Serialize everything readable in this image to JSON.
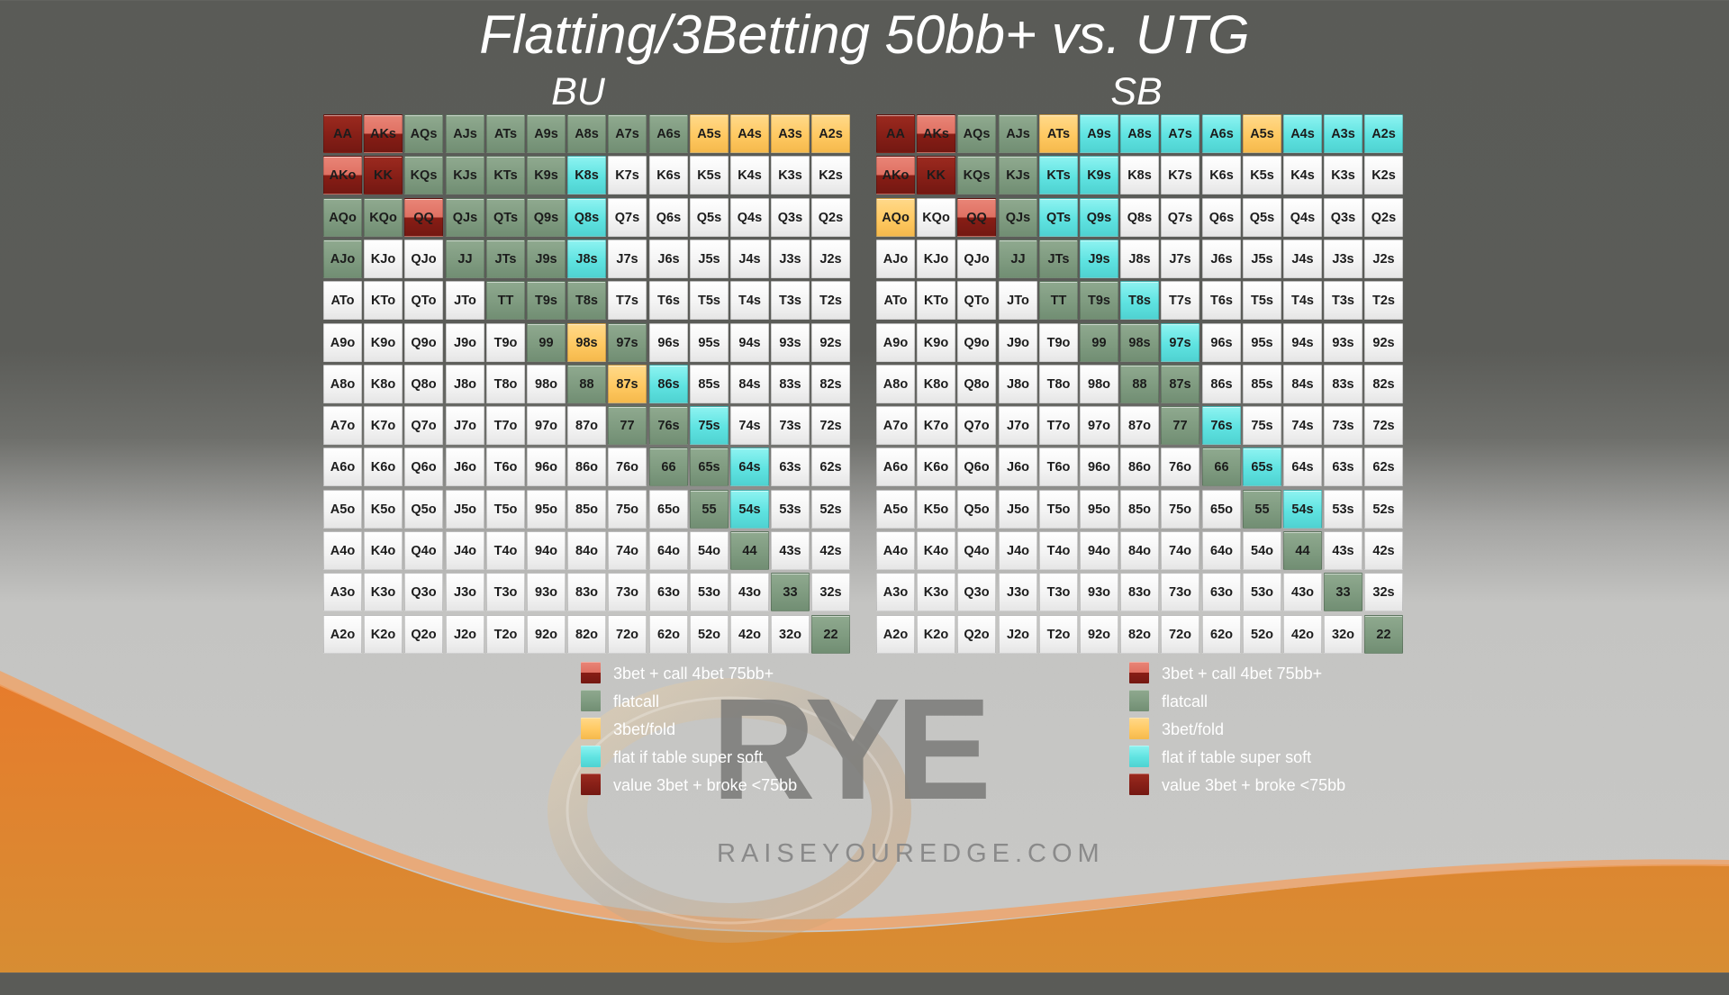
{
  "title": "Flatting/3Betting 50bb+ vs. UTG",
  "brand": {
    "logo_text": "RYE",
    "url_text": "RAISEYOUREDGE.COM"
  },
  "colors": {
    "w": "#f4f4f4",
    "f": "#7f9b80",
    "o": "#ffc962",
    "c": "#5fe3e1",
    "v": "#861f17",
    "s": "#df7062",
    "orange_swoosh": "#e17a2e"
  },
  "legend": [
    {
      "key": "s",
      "label": "3bet + call 4bet 75bb+"
    },
    {
      "key": "f",
      "label": "flatcall"
    },
    {
      "key": "o",
      "label": "3bet/fold"
    },
    {
      "key": "c",
      "label": "flat if table super soft"
    },
    {
      "key": "v",
      "label": "value 3bet + broke <75bb"
    }
  ],
  "panels": [
    {
      "name": "BU",
      "rows": [
        "v s f f f f f f f o o o o",
        "s v f f f f c w w w w w w",
        "f f s f f f c w w w w w w",
        "f w w f f f c w w w w w w",
        "w w w w f f f w w w w w w",
        "w w w w w f o f w w w w w",
        "w w w w w w f o c w w w w",
        "w w w w w w w f f c w w w",
        "w w w w w w w w f f c w w",
        "w w w w w w w w w f c w w",
        "w w w w w w w w w w f w w",
        "w w w w w w w w w w w f w",
        "w w w w w w w w w w w w f"
      ]
    },
    {
      "name": "SB",
      "rows": [
        "v s f f o c c c c o c c c",
        "s v f f c c w w w w w w w",
        "o w s f c c w w w w w w w",
        "w w w f f c w w w w w w w",
        "w w w w f f c w w w w w w",
        "w w w w w f f c w w w w w",
        "w w w w w w f f w w w w w",
        "w w w w w w w f c w w w w",
        "w w w w w w w w f c w w w",
        "w w w w w w w w w f c w w",
        "w w w w w w w w w w f w w",
        "w w w w w w w w w w w f w",
        "w w w w w w w w w w w w f"
      ]
    }
  ],
  "hand_matrix": [
    [
      "AA",
      "AKs",
      "AQs",
      "AJs",
      "ATs",
      "A9s",
      "A8s",
      "A7s",
      "A6s",
      "A5s",
      "A4s",
      "A3s",
      "A2s"
    ],
    [
      "AKo",
      "KK",
      "KQs",
      "KJs",
      "KTs",
      "K9s",
      "K8s",
      "K7s",
      "K6s",
      "K5s",
      "K4s",
      "K3s",
      "K2s"
    ],
    [
      "AQo",
      "KQo",
      "QQ",
      "QJs",
      "QTs",
      "Q9s",
      "Q8s",
      "Q7s",
      "Q6s",
      "Q5s",
      "Q4s",
      "Q3s",
      "Q2s"
    ],
    [
      "AJo",
      "KJo",
      "QJo",
      "JJ",
      "JTs",
      "J9s",
      "J8s",
      "J7s",
      "J6s",
      "J5s",
      "J4s",
      "J3s",
      "J2s"
    ],
    [
      "ATo",
      "KTo",
      "QTo",
      "JTo",
      "TT",
      "T9s",
      "T8s",
      "T7s",
      "T6s",
      "T5s",
      "T4s",
      "T3s",
      "T2s"
    ],
    [
      "A9o",
      "K9o",
      "Q9o",
      "J9o",
      "T9o",
      "99",
      "98s",
      "97s",
      "96s",
      "95s",
      "94s",
      "93s",
      "92s"
    ],
    [
      "A8o",
      "K8o",
      "Q8o",
      "J8o",
      "T8o",
      "98o",
      "88",
      "87s",
      "86s",
      "85s",
      "84s",
      "83s",
      "82s"
    ],
    [
      "A7o",
      "K7o",
      "Q7o",
      "J7o",
      "T7o",
      "97o",
      "87o",
      "77",
      "76s",
      "75s",
      "74s",
      "73s",
      "72s"
    ],
    [
      "A6o",
      "K6o",
      "Q6o",
      "J6o",
      "T6o",
      "96o",
      "86o",
      "76o",
      "66",
      "65s",
      "64s",
      "63s",
      "62s"
    ],
    [
      "A5o",
      "K5o",
      "Q5o",
      "J5o",
      "T5o",
      "95o",
      "85o",
      "75o",
      "65o",
      "55",
      "54s",
      "53s",
      "52s"
    ],
    [
      "A4o",
      "K4o",
      "Q4o",
      "J4o",
      "T4o",
      "94o",
      "84o",
      "74o",
      "64o",
      "54o",
      "44",
      "43s",
      "42s"
    ],
    [
      "A3o",
      "K3o",
      "Q3o",
      "J3o",
      "T3o",
      "93o",
      "83o",
      "73o",
      "63o",
      "53o",
      "43o",
      "33",
      "32s"
    ],
    [
      "A2o",
      "K2o",
      "Q2o",
      "J2o",
      "T2o",
      "92o",
      "82o",
      "72o",
      "62o",
      "52o",
      "42o",
      "32o",
      "22"
    ]
  ]
}
